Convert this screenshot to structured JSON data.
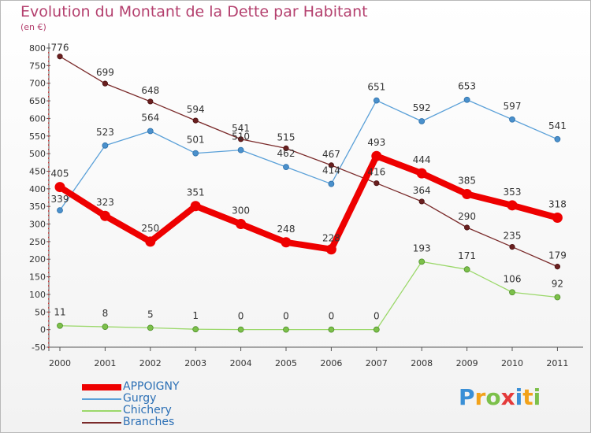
{
  "title": "Evolution du Montant de la Dette par Habitant",
  "subtitle": "(en €)",
  "logo": {
    "letters": [
      {
        "ch": "P",
        "color": "#3a8fd6"
      },
      {
        "ch": "r",
        "color": "#f2a21a"
      },
      {
        "ch": "o",
        "color": "#7cc04a"
      },
      {
        "ch": "x",
        "color": "#e43a3a"
      },
      {
        "ch": "i",
        "color": "#3a8fd6"
      },
      {
        "ch": "t",
        "color": "#f2a21a"
      },
      {
        "ch": "i",
        "color": "#7cc04a"
      }
    ]
  },
  "chart_data": {
    "type": "line",
    "x": [
      "2000",
      "2001",
      "2002",
      "2003",
      "2004",
      "2005",
      "2006",
      "2007",
      "2008",
      "2009",
      "2010",
      "2011"
    ],
    "ylim": [
      -50,
      800
    ],
    "yticks": [
      -50,
      0,
      50,
      100,
      150,
      200,
      250,
      300,
      350,
      400,
      450,
      500,
      550,
      600,
      650,
      700,
      750,
      800
    ],
    "grid": false,
    "legend": "bottom-left",
    "series": [
      {
        "name": "APPOIGNY",
        "color": "#ee0000",
        "values": [
          405,
          323,
          250,
          351,
          300,
          248,
          228,
          493,
          444,
          385,
          353,
          318
        ],
        "labels": [
          "405",
          "323",
          "250",
          "351",
          "300",
          "248",
          "228",
          "493",
          "444",
          "385",
          "353",
          "318"
        ]
      },
      {
        "name": "Gurgy",
        "color": "#5aa0d8",
        "values": [
          339,
          523,
          564,
          501,
          510,
          462,
          414,
          651,
          592,
          653,
          597,
          541
        ],
        "labels": [
          "339",
          "523",
          "564",
          "501",
          "510",
          "462",
          "414",
          "651",
          "592",
          "653",
          "597",
          "541"
        ]
      },
      {
        "name": "Chichery",
        "color": "#9bd86a",
        "values": [
          11,
          8,
          5,
          1,
          0,
          0,
          0,
          0,
          193,
          171,
          106,
          92
        ],
        "labels": [
          "11",
          "8",
          "5",
          "1",
          "0",
          "0",
          "0",
          "0",
          "193",
          "171",
          "106",
          "92"
        ]
      },
      {
        "name": "Branches",
        "color": "#7a2a2a",
        "values": [
          776,
          699,
          648,
          594,
          541,
          515,
          467,
          416,
          364,
          290,
          235,
          179
        ],
        "labels": [
          "776",
          "699",
          "648",
          "594",
          "541",
          "515",
          "467",
          "416",
          "364",
          "290",
          "235",
          "179"
        ]
      }
    ]
  }
}
